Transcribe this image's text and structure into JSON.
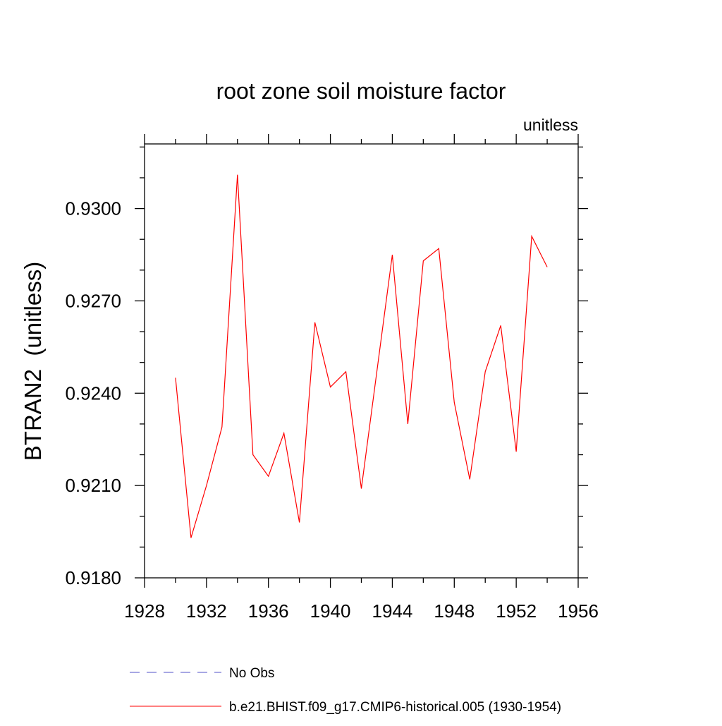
{
  "chart_data": {
    "type": "line",
    "title": "root zone soil moisture factor",
    "subtitle": "unitless",
    "ylabel": "BTRAN2  (unitless)",
    "xlabel": "",
    "xlim": [
      1928,
      1956
    ],
    "ylim": [
      0.918,
      0.9321
    ],
    "xticks": [
      "1928",
      "1932",
      "1936",
      "1940",
      "1944",
      "1948",
      "1952",
      "1956"
    ],
    "yticks": [
      "0.9180",
      "0.9210",
      "0.9240",
      "0.9270",
      "0.9300"
    ],
    "grid": false,
    "legend_position": "bottom",
    "legend": [
      {
        "label": "No Obs",
        "color": "#5050c8",
        "style": "dashed"
      },
      {
        "label": "b.e21.BHIST.f09_g17.CMIP6-historical.005 (1930-1954)",
        "color": "#ff0000",
        "style": "solid"
      }
    ],
    "series": [
      {
        "name": "b.e21.BHIST.f09_g17.CMIP6-historical.005 (1930-1954)",
        "color": "#ff0000",
        "x": [
          1930,
          1931,
          1932,
          1933,
          1934,
          1935,
          1936,
          1937,
          1938,
          1939,
          1940,
          1941,
          1942,
          1943,
          1944,
          1945,
          1946,
          1947,
          1948,
          1949,
          1950,
          1951,
          1952,
          1953,
          1954
        ],
        "y": [
          0.9245,
          0.9193,
          0.921,
          0.9229,
          0.9311,
          0.922,
          0.9213,
          0.9227,
          0.9198,
          0.9263,
          0.9242,
          0.9247,
          0.9209,
          0.9247,
          0.9285,
          0.923,
          0.9283,
          0.9287,
          0.9237,
          0.9212,
          0.9247,
          0.9262,
          0.9221,
          0.9291,
          0.9281
        ]
      }
    ]
  }
}
